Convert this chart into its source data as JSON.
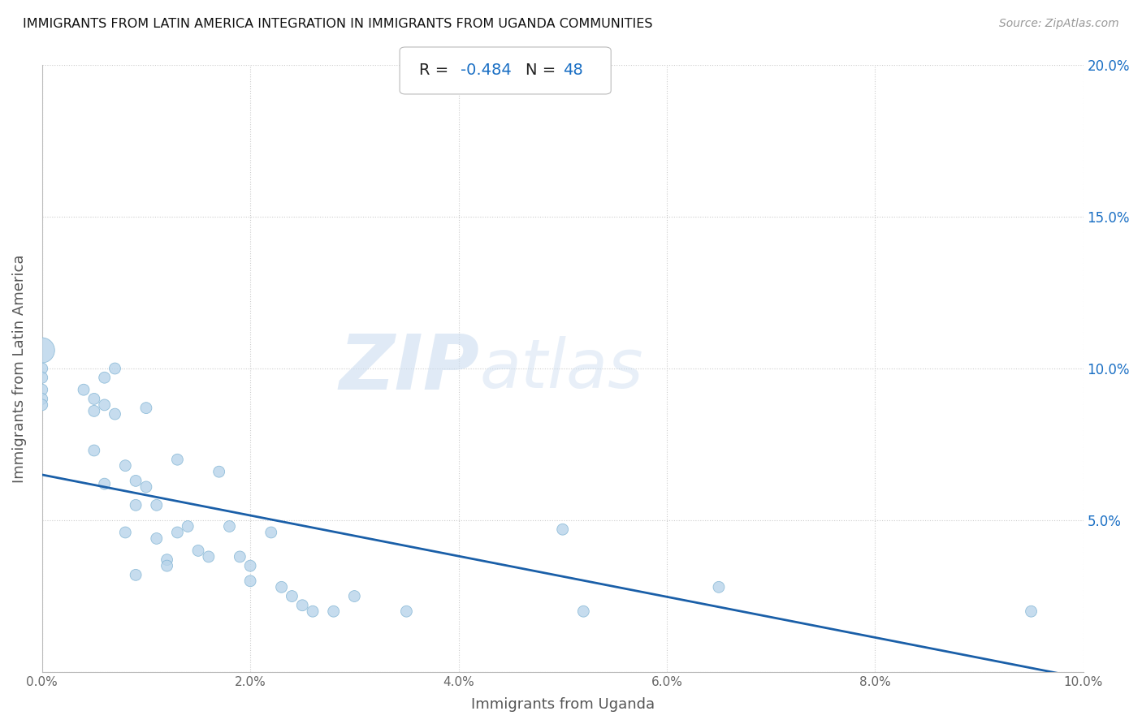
{
  "title": "IMMIGRANTS FROM LATIN AMERICA INTEGRATION IN IMMIGRANTS FROM UGANDA COMMUNITIES",
  "source": "Source: ZipAtlas.com",
  "xlabel": "Immigrants from Uganda",
  "ylabel": "Immigrants from Latin America",
  "R": -0.484,
  "N": 48,
  "xlim": [
    0,
    0.1
  ],
  "ylim": [
    0,
    0.2
  ],
  "xticks": [
    0.0,
    0.02,
    0.04,
    0.06,
    0.08,
    0.1
  ],
  "yticks": [
    0.0,
    0.05,
    0.1,
    0.15,
    0.2
  ],
  "xtick_labels": [
    "0.0%",
    "",
    "2.0%",
    "",
    "4.0%",
    "",
    "6.0%",
    "",
    "8.0%",
    "",
    "10.0%"
  ],
  "xtick_positions": [
    0.0,
    0.01,
    0.02,
    0.03,
    0.04,
    0.05,
    0.06,
    0.07,
    0.08,
    0.09,
    0.1
  ],
  "ytick_labels_right": [
    "",
    "5.0%",
    "10.0%",
    "15.0%",
    "20.0%"
  ],
  "scatter_x": [
    0.0,
    0.0,
    0.0,
    0.0,
    0.0,
    0.0,
    0.004,
    0.005,
    0.005,
    0.005,
    0.006,
    0.006,
    0.006,
    0.007,
    0.007,
    0.008,
    0.008,
    0.009,
    0.009,
    0.009,
    0.01,
    0.01,
    0.011,
    0.011,
    0.012,
    0.012,
    0.013,
    0.013,
    0.014,
    0.015,
    0.016,
    0.017,
    0.018,
    0.019,
    0.02,
    0.02,
    0.022,
    0.023,
    0.024,
    0.025,
    0.026,
    0.028,
    0.03,
    0.035,
    0.05,
    0.052,
    0.065,
    0.095
  ],
  "scatter_y": [
    0.106,
    0.1,
    0.097,
    0.093,
    0.09,
    0.088,
    0.093,
    0.09,
    0.086,
    0.073,
    0.097,
    0.088,
    0.062,
    0.1,
    0.085,
    0.068,
    0.046,
    0.063,
    0.055,
    0.032,
    0.061,
    0.087,
    0.055,
    0.044,
    0.037,
    0.035,
    0.07,
    0.046,
    0.048,
    0.04,
    0.038,
    0.066,
    0.048,
    0.038,
    0.035,
    0.03,
    0.046,
    0.028,
    0.025,
    0.022,
    0.02,
    0.02,
    0.025,
    0.02,
    0.047,
    0.02,
    0.028,
    0.02
  ],
  "scatter_sizes": [
    500,
    100,
    100,
    100,
    100,
    100,
    100,
    100,
    100,
    100,
    100,
    100,
    100,
    100,
    100,
    100,
    100,
    100,
    100,
    100,
    100,
    100,
    100,
    100,
    100,
    100,
    100,
    100,
    100,
    100,
    100,
    100,
    100,
    100,
    100,
    100,
    100,
    100,
    100,
    100,
    100,
    100,
    100,
    100,
    100,
    100,
    100,
    100
  ],
  "scatter_color": "#b8d4ea",
  "scatter_edgecolor": "#7fb3d3",
  "scatter_alpha": 0.8,
  "line_color": "#1a5fa8",
  "line_x": [
    0.0,
    0.1
  ],
  "line_y_start": 0.065,
  "line_y_end": -0.002,
  "watermark_zip": "ZIP",
  "watermark_atlas": "atlas",
  "background_color": "#ffffff",
  "grid_color": "#cccccc",
  "title_color": "#222222",
  "axis_label_color": "#555555",
  "tick_color_right": "#1a6fc4",
  "tick_color_bottom": "#666666"
}
